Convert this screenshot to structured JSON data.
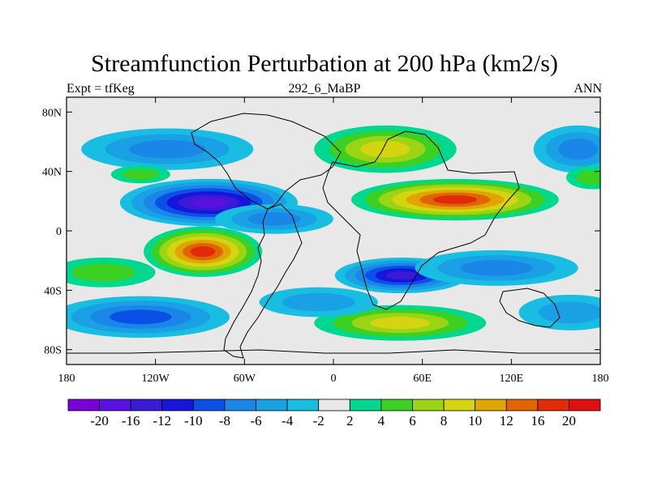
{
  "chart_data": {
    "type": "heatmap",
    "title": "Streamfunction Perturbation at 200 hPa (km2/s)",
    "left_label": "Expt = tfKeg",
    "center_label": "292_6_MaBP",
    "right_label": "ANN",
    "x_ticks": [
      "180",
      "120W",
      "60W",
      "0",
      "60E",
      "120E",
      "180"
    ],
    "y_ticks": [
      "80N",
      "40N",
      "0",
      "40S",
      "80S"
    ],
    "xlim": [
      -180,
      180
    ],
    "ylim": [
      -90,
      90
    ],
    "x_tick_values": [
      -180,
      -120,
      -60,
      0,
      60,
      120,
      180
    ],
    "y_tick_values": [
      80,
      40,
      0,
      -40,
      -80
    ],
    "colorbar": {
      "levels": [
        -20,
        -16,
        -12,
        -10,
        -8,
        -6,
        -4,
        -2,
        2,
        4,
        6,
        8,
        10,
        12,
        16,
        20
      ],
      "labels": [
        "-20",
        "-16",
        "-12",
        "-10",
        "-8",
        "-6",
        "-4",
        "-2",
        "2",
        "4",
        "6",
        "8",
        "10",
        "12",
        "16",
        "20"
      ],
      "colors": [
        "#7a00d8",
        "#5a10e0",
        "#3a1ad4",
        "#1515dc",
        "#0a50e6",
        "#1a86e8",
        "#1aa0e4",
        "#1abde2",
        "#e8e8e8",
        "#00d890",
        "#3bd022",
        "#9ad414",
        "#d4d410",
        "#e0a600",
        "#e06400",
        "#e02a0a",
        "#e01010"
      ]
    },
    "features": [
      {
        "lon": -84,
        "lat": 19,
        "value": -18,
        "rx": 60,
        "ry": 16
      },
      {
        "lon": -88,
        "lat": -14,
        "value": 16,
        "rx": 40,
        "ry": 17
      },
      {
        "lon": 46,
        "lat": -30,
        "value": -12,
        "rx": 45,
        "ry": 12
      },
      {
        "lon": 82,
        "lat": 21,
        "value": 16,
        "rx": 70,
        "ry": 14
      },
      {
        "lon": 35,
        "lat": 55,
        "value": 9,
        "rx": 48,
        "ry": 16
      },
      {
        "lon": 45,
        "lat": -62,
        "value": 8,
        "rx": 58,
        "ry": 12
      },
      {
        "lon": -112,
        "lat": 55,
        "value": -7,
        "rx": 58,
        "ry": 14
      },
      {
        "lon": 165,
        "lat": 55,
        "value": -6,
        "rx": 30,
        "ry": 16
      },
      {
        "lon": -130,
        "lat": -58,
        "value": -8,
        "rx": 60,
        "ry": 14
      },
      {
        "lon": 160,
        "lat": -55,
        "value": -5,
        "rx": 35,
        "ry": 12
      },
      {
        "lon": 110,
        "lat": -25,
        "value": -6,
        "rx": 55,
        "ry": 12
      },
      {
        "lon": -155,
        "lat": -28,
        "value": 5,
        "rx": 35,
        "ry": 10
      },
      {
        "lon": -40,
        "lat": 8,
        "value": -6,
        "rx": 40,
        "ry": 10
      },
      {
        "lon": -10,
        "lat": -48,
        "value": -5,
        "rx": 40,
        "ry": 10
      },
      {
        "lon": -130,
        "lat": 38,
        "value": 4,
        "rx": 20,
        "ry": 6
      },
      {
        "lon": 175,
        "lat": 36,
        "value": 4,
        "rx": 18,
        "ry": 8
      }
    ]
  }
}
